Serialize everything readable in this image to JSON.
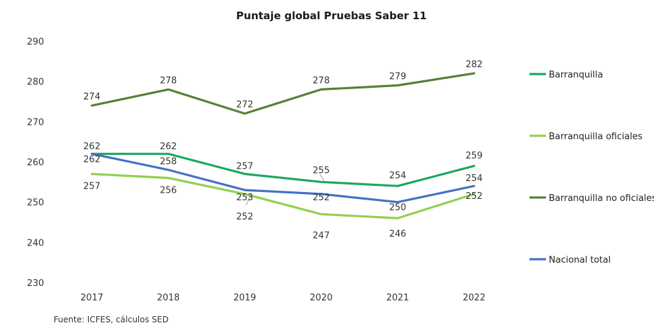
{
  "chart_data": {
    "type": "line",
    "title": "Puntaje global Pruebas Saber 11",
    "categories": [
      "2017",
      "2018",
      "2019",
      "2020",
      "2021",
      "2022"
    ],
    "ylim": [
      230,
      290
    ],
    "yticks": [
      230,
      240,
      250,
      260,
      270,
      280,
      290
    ],
    "grid": false,
    "legend_position": "right",
    "series": [
      {
        "name": "Barranquilla",
        "color": "#1aa862",
        "values": [
          262,
          262,
          257,
          255,
          254,
          259
        ]
      },
      {
        "name": "Barranquilla oficiales",
        "color": "#92d050",
        "values": [
          257,
          256,
          252,
          247,
          246,
          252
        ]
      },
      {
        "name": "Barranquilla no oficiales",
        "color": "#548235",
        "values": [
          274,
          278,
          272,
          278,
          279,
          282
        ]
      },
      {
        "name": "Nacional total",
        "color": "#4472c4",
        "values": [
          262,
          258,
          253,
          252,
          250,
          254
        ]
      }
    ],
    "source": "Fuente: ICFES, cálculos SED"
  }
}
